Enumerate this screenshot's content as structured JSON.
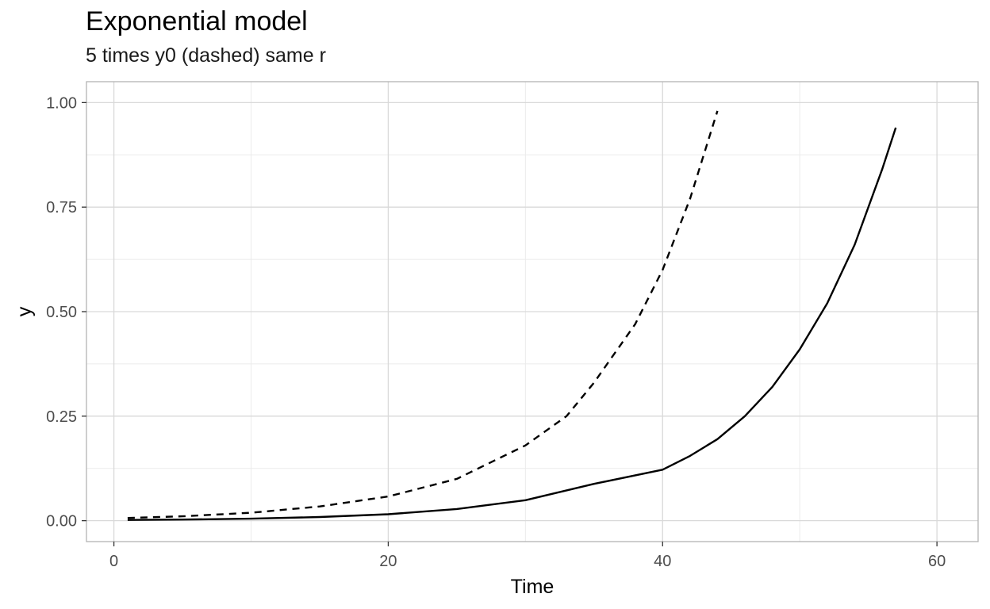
{
  "chart_data": {
    "type": "line",
    "title": "Exponential model",
    "subtitle": "5 times y0 (dashed) same r",
    "xlabel": "Time",
    "ylabel": "y",
    "xlim": [
      -2,
      63
    ],
    "ylim": [
      -0.05,
      1.05
    ],
    "x_ticks": [
      0,
      20,
      40,
      60
    ],
    "x_tick_labels": [
      "0",
      "20",
      "40",
      "60"
    ],
    "y_ticks": [
      0,
      0.25,
      0.5,
      0.75,
      1
    ],
    "y_tick_labels": [
      "0.00",
      "0.25",
      "0.50",
      "0.75",
      "1.00"
    ],
    "x_minor_breaks": [
      10,
      30,
      50
    ],
    "y_minor_breaks": [
      0.125,
      0.375,
      0.625,
      0.875
    ],
    "grid": true,
    "legend": "none",
    "colors": {
      "line": "#000000",
      "grid": "#d9d9d9",
      "grid_minor": "#ebebeb",
      "panel_border": "#b3b3b3"
    },
    "series": [
      {
        "style": "solid",
        "x": [
          1,
          5,
          10,
          15,
          20,
          25,
          30,
          35,
          40,
          42,
          44,
          46,
          48,
          50,
          52,
          54,
          56,
          57
        ],
        "y": [
          0.0017,
          0.0027,
          0.0049,
          0.0087,
          0.0155,
          0.028,
          0.049,
          0.088,
          0.122,
          0.155,
          0.195,
          0.25,
          0.32,
          0.41,
          0.52,
          0.66,
          0.84,
          0.94
        ]
      },
      {
        "style": "dashed",
        "x": [
          1,
          5,
          10,
          15,
          20,
          25,
          30,
          33,
          35,
          38,
          40,
          42,
          44
        ],
        "y": [
          0.0065,
          0.0105,
          0.019,
          0.034,
          0.058,
          0.1,
          0.18,
          0.25,
          0.33,
          0.47,
          0.6,
          0.77,
          0.98
        ]
      }
    ]
  }
}
